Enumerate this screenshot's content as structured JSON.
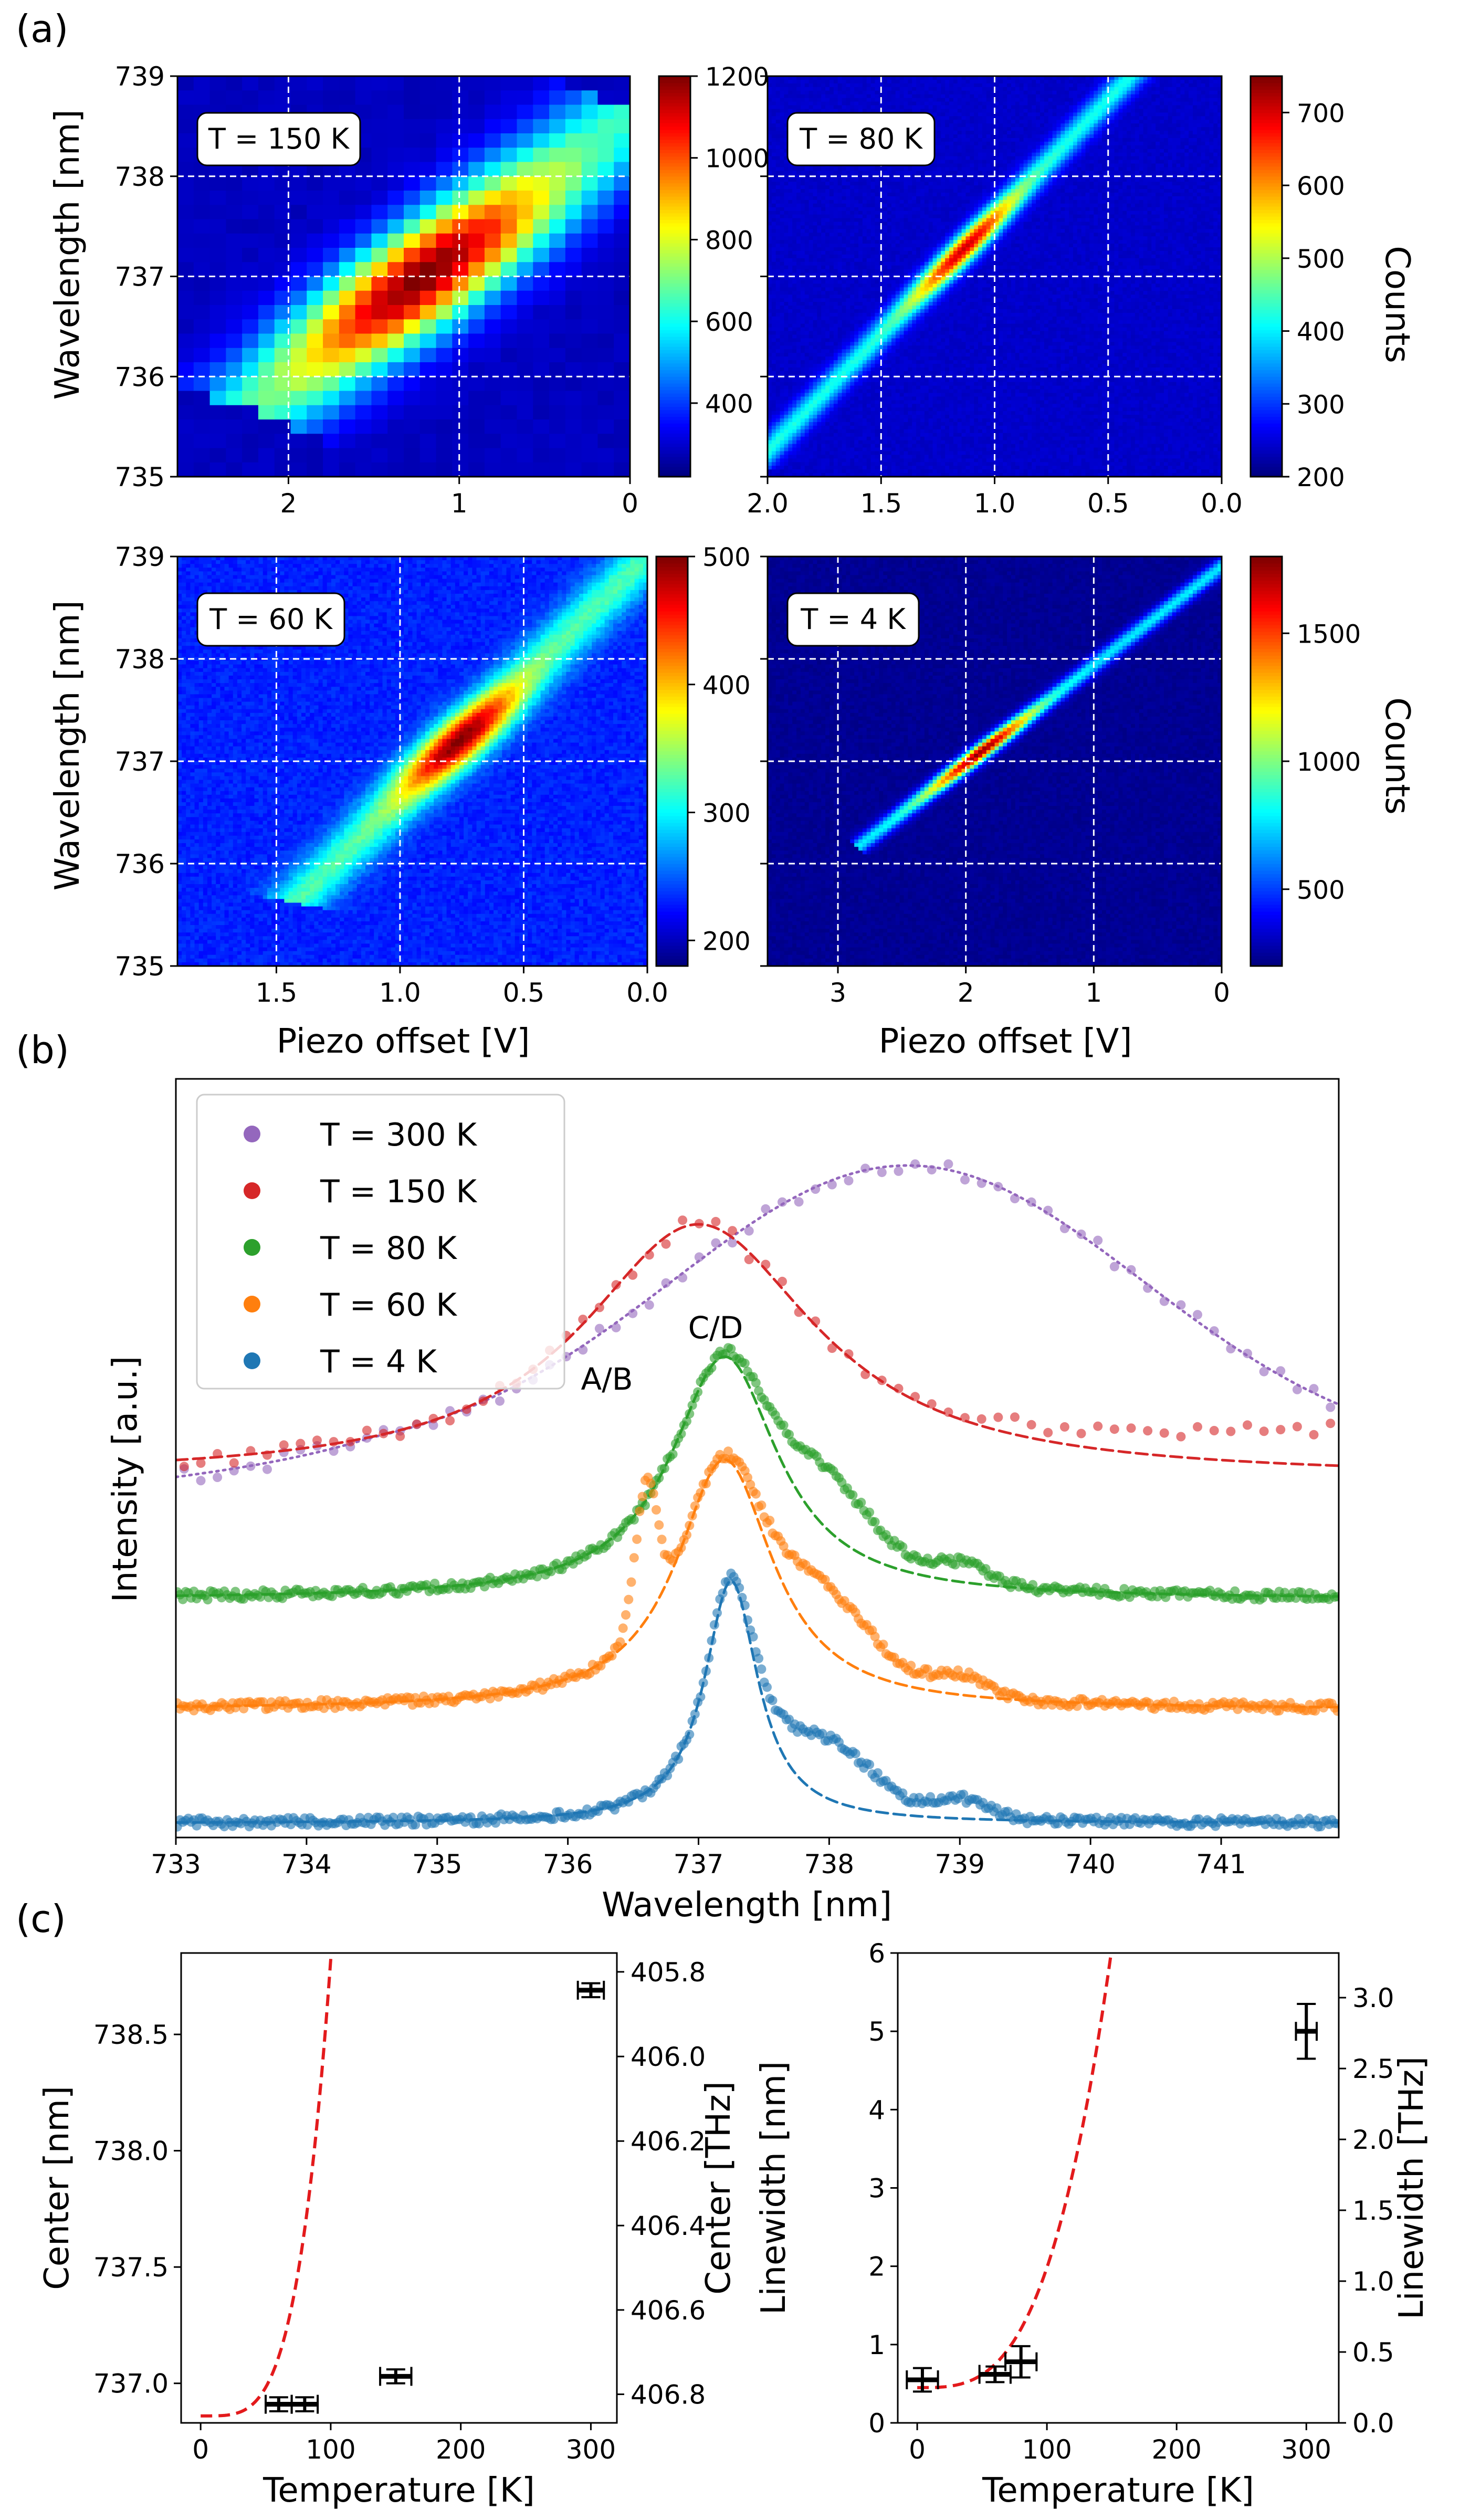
{
  "panel_labels": {
    "a": "(a)",
    "b": "(b)",
    "c": "(c)"
  },
  "shared": {
    "ylabel_wavelength": "Wavelength [nm]",
    "xlabel_piezo": "Piezo offset [V]",
    "colorbar_label": "Counts"
  },
  "chart_data": [
    {
      "id": "a1",
      "type": "heatmap",
      "panel": "(a)",
      "annotation": "T = 150 K",
      "xlim": [
        2.65,
        0
      ],
      "ylim": [
        735,
        739
      ],
      "xticks": [
        2,
        1,
        0
      ],
      "xtick_labels": [
        "2",
        "1",
        "0"
      ],
      "yticks": [
        735,
        736,
        737,
        738,
        739
      ],
      "ytick_labels": [
        "735",
        "736",
        "737",
        "738",
        "739"
      ],
      "colorbar": {
        "min": 220,
        "max": 1200,
        "ticks": [
          400,
          600,
          800,
          1000,
          1200
        ],
        "tick_labels": [
          "400",
          "600",
          "800",
          "1000",
          "1200"
        ]
      },
      "colormap": "jet",
      "features": {
        "ridge_from": [
          2.1,
          735.8
        ],
        "ridge_to": [
          0.1,
          738.5
        ],
        "peak_at": [
          1.2,
          737.0
        ],
        "peak_counts": 1200,
        "background_counts": 280
      }
    },
    {
      "id": "a2",
      "type": "heatmap",
      "panel": "(a)",
      "annotation": "T = 80 K",
      "ylabel": "",
      "xlabel": "",
      "xlim": [
        2.0,
        0.0
      ],
      "ylim": [
        735,
        739
      ],
      "xticks": [
        2.0,
        1.5,
        1.0,
        0.5,
        0.0
      ],
      "xtick_labels": [
        "2.0",
        "1.5",
        "1.0",
        "0.5",
        "0.0"
      ],
      "yticks": [
        735,
        736,
        737,
        738,
        739
      ],
      "colorbar": {
        "min": 200,
        "max": 750,
        "ticks": [
          200,
          300,
          400,
          500,
          600,
          700
        ],
        "tick_labels": [
          "200",
          "300",
          "400",
          "500",
          "600",
          "700"
        ],
        "label": "Counts"
      },
      "colormap": "jet",
      "features": {
        "ridge_from": [
          1.98,
          735.3
        ],
        "ridge_to": [
          0.4,
          739.0
        ],
        "peak_at": [
          0.95,
          737.2
        ],
        "peak_counts": 750,
        "background_counts": 240
      }
    },
    {
      "id": "a3",
      "type": "heatmap",
      "panel": "(a)",
      "annotation": "T = 60 K",
      "xlabel": "Piezo offset [V]",
      "xlim": [
        1.9,
        0.0
      ],
      "ylim": [
        735,
        739
      ],
      "xticks": [
        1.5,
        1.0,
        0.5,
        0.0
      ],
      "xtick_labels": [
        "1.5",
        "1.0",
        "0.5",
        "0.0"
      ],
      "yticks": [
        735,
        736,
        737,
        738,
        739
      ],
      "ytick_labels": [
        "735",
        "736",
        "737",
        "738",
        "739"
      ],
      "colorbar": {
        "min": 180,
        "max": 500,
        "ticks": [
          200,
          300,
          400,
          500
        ],
        "tick_labels": [
          "200",
          "300",
          "400",
          "500"
        ]
      },
      "colormap": "jet",
      "features": {
        "ridge_from": [
          1.35,
          735.8
        ],
        "ridge_to": [
          0.0,
          739.0
        ],
        "peak_at": [
          0.75,
          737.2
        ],
        "peak_counts": 500,
        "background_counts": 230
      }
    },
    {
      "id": "a4",
      "type": "heatmap",
      "panel": "(a)",
      "annotation": "T = 4 K",
      "xlabel": "Piezo offset [V]",
      "xlim": [
        3.55,
        0
      ],
      "ylim": [
        735,
        739
      ],
      "xticks": [
        3,
        2,
        1,
        0
      ],
      "xtick_labels": [
        "3",
        "2",
        "1",
        "0"
      ],
      "yticks": [
        735,
        736,
        737,
        738,
        739
      ],
      "colorbar": {
        "min": 200,
        "max": 1800,
        "ticks": [
          500,
          1000,
          1500
        ],
        "tick_labels": [
          "500",
          "1000",
          "1500"
        ],
        "label": "Counts"
      },
      "colormap": "jet",
      "features": {
        "ridge_from": [
          2.7,
          736.3
        ],
        "ridge_to": [
          0.0,
          738.9
        ],
        "peak_at": [
          1.95,
          737.15
        ],
        "peak_counts": 1800,
        "background_counts": 230
      }
    },
    {
      "id": "b",
      "type": "scatter",
      "panel": "(b)",
      "xlabel": "Wavelength [nm]",
      "ylabel": "Intensity [a.u.]",
      "xlim": [
        733,
        741.9
      ],
      "xticks": [
        733,
        734,
        735,
        736,
        737,
        738,
        739,
        740,
        741
      ],
      "xtick_labels": [
        "733",
        "734",
        "735",
        "736",
        "737",
        "738",
        "739",
        "740",
        "741"
      ],
      "ylim": [
        0,
        1
      ],
      "yticks": [],
      "legend_placement": "upper-left",
      "annotations": [
        "A/B",
        "C/D"
      ],
      "series": [
        {
          "name": "T = 300 K",
          "color": "#9467bd",
          "fit_style": "dotted",
          "center": 738.6,
          "width": 3.4,
          "offset": 0.5,
          "amp": 0.4
        },
        {
          "name": "T = 150 K",
          "color": "#d62728",
          "fit_style": "dashed",
          "center": 737.0,
          "width": 2.2,
          "offset": 0.475,
          "amp": 0.345
        },
        {
          "name": "T = 80 K",
          "color": "#2ca02c",
          "fit_style": "dashed",
          "center": 737.2,
          "width": 1.0,
          "offset": 0.31,
          "amp": 0.33
        },
        {
          "name": "T = 60 K",
          "color": "#ff7f0e",
          "fit_style": "dashed",
          "center": 737.2,
          "width": 0.9,
          "offset": 0.16,
          "amp": 0.34
        },
        {
          "name": "T = 4 K",
          "color": "#1f77b4",
          "fit_style": "dashed",
          "center": 737.25,
          "width": 0.5,
          "offset": 0.005,
          "amp": 0.33
        }
      ]
    },
    {
      "id": "c1",
      "type": "scatter",
      "panel": "(c)",
      "xlabel": "Temperature [K]",
      "ylabel": "Center [nm]",
      "ylabel_right": "Center [THz]",
      "xlim": [
        -15,
        320
      ],
      "ylim": [
        736.83,
        738.85
      ],
      "xticks": [
        0,
        100,
        200,
        300
      ],
      "xtick_labels": [
        "0",
        "100",
        "200",
        "300"
      ],
      "yticks": [
        737.0,
        737.5,
        738.0,
        738.5
      ],
      "ytick_labels": [
        "737.0",
        "737.5",
        "738.0",
        "738.5"
      ],
      "yticks_right": [
        405.8,
        406.0,
        406.2,
        406.4,
        406.6,
        406.8
      ],
      "ytick_right_labels": [
        "405.8",
        "406.0",
        "406.2",
        "406.4",
        "406.6",
        "406.8"
      ],
      "points": [
        {
          "x": 60,
          "y": 736.91,
          "xerr": 10,
          "yerr": 0.03
        },
        {
          "x": 80,
          "y": 736.91,
          "xerr": 10,
          "yerr": 0.03
        },
        {
          "x": 150,
          "y": 737.03,
          "xerr": 12,
          "yerr": 0.03
        },
        {
          "x": 300,
          "y": 738.69,
          "xerr": 10,
          "yerr": 0.03
        }
      ],
      "fit": {
        "style": "dashed",
        "color": "#e31a1c",
        "model": "y = 736.86 + 1.96e-8 * T^4",
        "x_range": [
          0,
          310
        ]
      }
    },
    {
      "id": "c2",
      "type": "scatter",
      "panel": "(c)",
      "xlabel": "Temperature [K]",
      "ylabel": "Linewidth [nm]",
      "ylabel_right": "Linewidth [THz]",
      "xlim": [
        -15,
        325
      ],
      "ylim": [
        0,
        6
      ],
      "xticks": [
        0,
        100,
        200,
        300
      ],
      "xtick_labels": [
        "0",
        "100",
        "200",
        "300"
      ],
      "yticks": [
        0,
        1,
        2,
        3,
        4,
        5,
        6
      ],
      "ytick_labels": [
        "0",
        "1",
        "2",
        "3",
        "4",
        "5",
        "6"
      ],
      "yticks_right": [
        0.0,
        0.5,
        1.0,
        1.5,
        2.0,
        2.5,
        3.0
      ],
      "ytick_right_labels": [
        "0.0",
        "0.5",
        "1.0",
        "1.5",
        "2.0",
        "2.5",
        "3.0"
      ],
      "points": [
        {
          "x": 4,
          "y": 0.55,
          "xerr": 12,
          "yerr": 0.15
        },
        {
          "x": 60,
          "y": 0.62,
          "xerr": 12,
          "yerr": 0.1
        },
        {
          "x": 80,
          "y": 0.78,
          "xerr": 12,
          "yerr": 0.2
        },
        {
          "x": 300,
          "y": 5.0,
          "xerr": 8,
          "yerr": 0.35
        }
      ],
      "fit": {
        "style": "dashed",
        "color": "#e31a1c",
        "model": "y = 0.45 + 6.1e-7 * T^3.2",
        "x_range": [
          0,
          310
        ]
      }
    }
  ]
}
